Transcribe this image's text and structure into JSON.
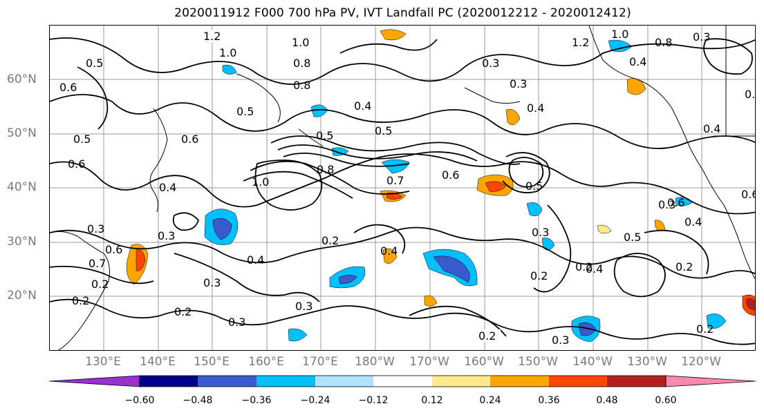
{
  "title": "2020011912 F000 700 hPa PV, IVT Landfall PC (2020012212 - 2020012412)",
  "lat_labels": [
    "60°N",
    "50°N",
    "40°N",
    "30°N",
    "20°N"
  ],
  "lon_labels": [
    "130°E",
    "140°E",
    "150°E",
    "160°E",
    "170°E",
    "180°W",
    "170°W",
    "160°W",
    "150°W",
    "140°W",
    "130°W",
    "120°W"
  ],
  "colorbar": {
    "ticks": [
      "−0.60",
      "−0.48",
      "−0.36",
      "−0.24",
      "−0.12",
      "0.12",
      "0.24",
      "0.36",
      "0.48",
      "0.60"
    ],
    "colors": [
      "#9b30d0",
      "#00008b",
      "#3a5bcd",
      "#00bfff",
      "#b0e2ff",
      "#ffffff",
      "#ffe98a",
      "#ffa500",
      "#ff4500",
      "#b22222",
      "#ff88b0"
    ]
  },
  "contour_labels": [
    "1.2",
    "1.0",
    "0.5",
    "0.6",
    "0.8",
    "0.5",
    "0.6",
    "0.5",
    "0.6",
    "0.4",
    "0.5",
    "0.4",
    "0.5",
    "0.8",
    "1.0",
    "0.7",
    "0.6",
    "0.2",
    "0.3",
    "0.3",
    "0.6",
    "0.7",
    "0.4",
    "0.3",
    "0.2",
    "0.3",
    "0.2",
    "0.2",
    "0.4",
    "0.2",
    "0.2",
    "0.3",
    "0.3",
    "0.5",
    "0.6",
    "0.5",
    "0.4",
    "0.2",
    "0.2",
    "0.2",
    "1.0",
    "0.8",
    "0.3",
    "0.3",
    "0.4",
    "0.4",
    "0.4",
    "1.2",
    "1.0",
    "0.8",
    "0.3",
    "0.4",
    "0.6",
    "0.3",
    "0.6",
    "0.3"
  ]
}
